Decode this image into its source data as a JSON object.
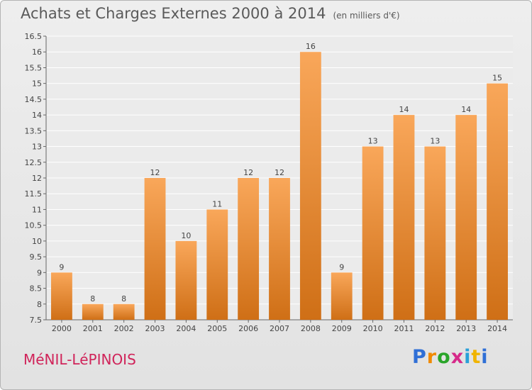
{
  "chart_data": {
    "type": "bar",
    "title": "Achats et Charges Externes 2000 à 2014",
    "unit_label": "(en milliers d'€)",
    "categories": [
      "2000",
      "2001",
      "2002",
      "2003",
      "2004",
      "2005",
      "2006",
      "2007",
      "2008",
      "2009",
      "2010",
      "2011",
      "2012",
      "2013",
      "2014"
    ],
    "values": [
      9,
      8,
      8,
      12,
      10,
      11,
      12,
      12,
      16,
      9,
      13,
      14,
      13,
      14,
      15
    ],
    "value_labels": [
      "9",
      "8",
      "8",
      "12",
      "10",
      "11",
      "12",
      "12",
      "16",
      "9",
      "13",
      "14",
      "13",
      "14",
      "15"
    ],
    "ylim": [
      7.5,
      16.5
    ],
    "yticks": [
      7.5,
      8,
      8.5,
      9,
      9.5,
      10,
      10.5,
      11,
      11.5,
      12,
      12.5,
      13,
      13.5,
      14,
      14.5,
      15,
      15.5,
      16,
      16.5
    ],
    "ytick_labels": [
      "7.5",
      "8",
      "8.5",
      "9",
      "9.5",
      "10",
      "10.5",
      "11",
      "11.5",
      "12",
      "12.5",
      "13",
      "13.5",
      "14",
      "14.5",
      "15",
      "15.5",
      "16",
      "16.5"
    ],
    "grid": true,
    "bar_color_top": "#f9a75a",
    "bar_color_bottom": "#cf6f16",
    "legend": null
  },
  "footer": {
    "commune": "MéNIL-LéPINOIS",
    "logo_text": "Proxiti"
  }
}
